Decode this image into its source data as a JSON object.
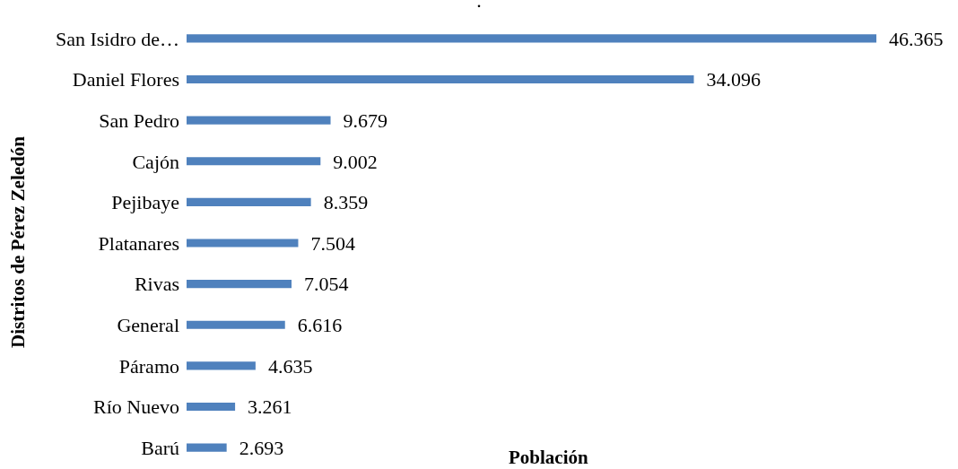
{
  "chart_data": {
    "type": "bar",
    "orientation": "horizontal",
    "title": ".",
    "xlabel": "Población",
    "ylabel": "Distritos de Pérez Zeledón",
    "categories": [
      "San Isidro de…",
      "Daniel Flores",
      "San Pedro",
      "Cajón",
      "Pejibaye",
      "Platanares",
      "Rivas",
      "General",
      "Páramo",
      "Río Nuevo",
      "Barú"
    ],
    "values": [
      46365,
      34096,
      9679,
      9002,
      8359,
      7504,
      7054,
      6616,
      4635,
      3261,
      2693
    ],
    "value_labels": [
      "46.365",
      "34.096",
      "9.679",
      "9.002",
      "8.359",
      "7.504",
      "7.054",
      "6.616",
      "4.635",
      "3.261",
      "2.693"
    ],
    "color": "#4f81bd",
    "tick_labels": "y"
  }
}
